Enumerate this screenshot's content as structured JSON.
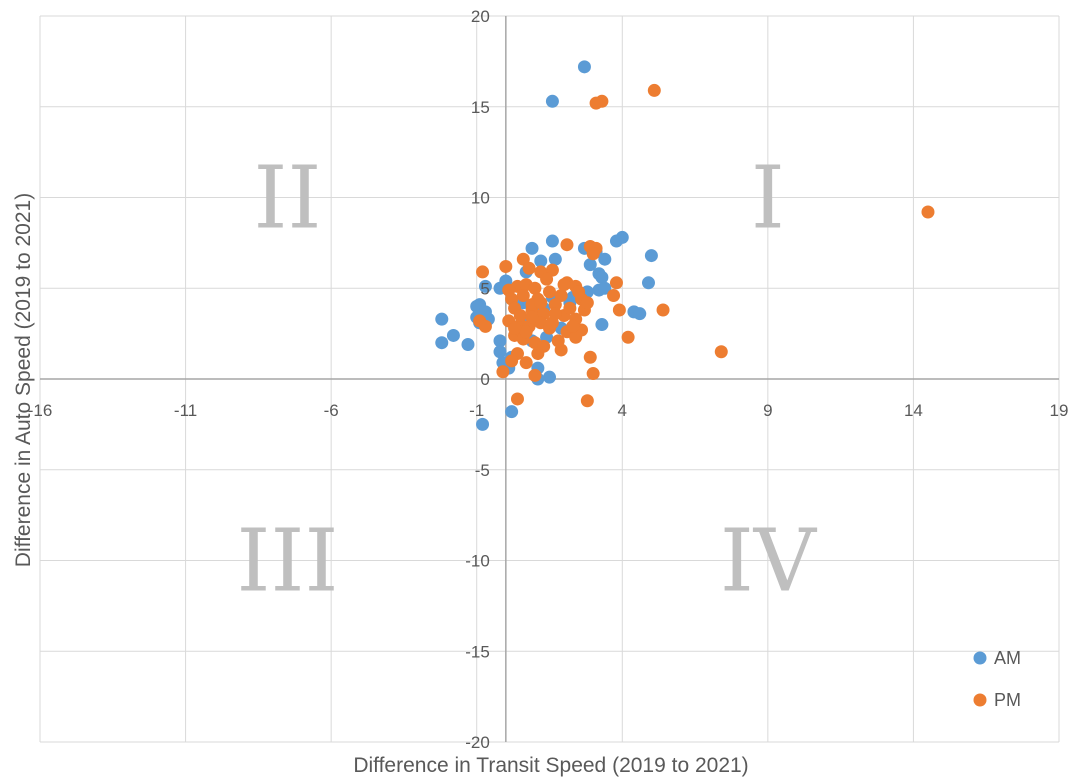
{
  "chart_data": {
    "type": "scatter",
    "title": "",
    "xlabel": "Difference in Transit Speed (2019 to 2021)",
    "ylabel": "Difference in Auto Speed (2019 to 2021)",
    "xlim": [
      -16,
      19
    ],
    "ylim": [
      -20,
      20
    ],
    "x_ticks": [
      -16,
      -11,
      -6,
      -1,
      4,
      9,
      14,
      19
    ],
    "y_ticks": [
      -20,
      -15,
      -10,
      -5,
      0,
      5,
      10,
      15,
      20
    ],
    "grid": true,
    "legend_position": "bottom-right",
    "quadrant_labels": [
      {
        "label": "I",
        "x": 9,
        "y": 10
      },
      {
        "label": "II",
        "x": -7.5,
        "y": 10
      },
      {
        "label": "III",
        "x": -7.5,
        "y": -10
      },
      {
        "label": "IV",
        "x": 9,
        "y": -10
      }
    ],
    "series": [
      {
        "name": "AM",
        "color": "#5b9bd5",
        "points": [
          [
            2.7,
            17.2
          ],
          [
            1.6,
            15.3
          ],
          [
            3.8,
            7.6
          ],
          [
            4.0,
            7.8
          ],
          [
            1.6,
            7.6
          ],
          [
            0.9,
            7.2
          ],
          [
            2.7,
            7.2
          ],
          [
            3.1,
            7.0
          ],
          [
            2.9,
            6.3
          ],
          [
            3.4,
            6.6
          ],
          [
            1.2,
            6.5
          ],
          [
            5.0,
            6.8
          ],
          [
            1.7,
            6.6
          ],
          [
            3.2,
            5.8
          ],
          [
            0.7,
            5.9
          ],
          [
            3.3,
            5.6
          ],
          [
            0.0,
            5.4
          ],
          [
            -0.2,
            5.0
          ],
          [
            -0.7,
            5.1
          ],
          [
            4.9,
            5.3
          ],
          [
            3.2,
            4.9
          ],
          [
            3.4,
            5.0
          ],
          [
            2.8,
            4.8
          ],
          [
            0.6,
            4.2
          ],
          [
            -0.9,
            4.1
          ],
          [
            -1.0,
            4.0
          ],
          [
            -0.7,
            3.7
          ],
          [
            -1.0,
            3.4
          ],
          [
            -0.6,
            3.3
          ],
          [
            -0.9,
            3.1
          ],
          [
            -2.2,
            3.3
          ],
          [
            -1.8,
            2.4
          ],
          [
            -2.2,
            2.0
          ],
          [
            -1.3,
            1.9
          ],
          [
            -0.2,
            2.1
          ],
          [
            -0.2,
            1.5
          ],
          [
            0.2,
            1.2
          ],
          [
            -0.1,
            0.9
          ],
          [
            0.1,
            0.6
          ],
          [
            1.1,
            0.6
          ],
          [
            1.5,
            0.1
          ],
          [
            1.1,
            0.0
          ],
          [
            0.2,
            -1.8
          ],
          [
            -0.8,
            -2.5
          ],
          [
            4.4,
            3.7
          ],
          [
            4.6,
            3.6
          ],
          [
            3.3,
            3.0
          ],
          [
            1.3,
            3.9
          ],
          [
            1.6,
            4.5
          ],
          [
            2.2,
            4.2
          ],
          [
            0.8,
            3.2
          ],
          [
            1.9,
            2.8
          ],
          [
            1.4,
            2.3
          ],
          [
            0.4,
            2.5
          ],
          [
            2.3,
            4.5
          ],
          [
            0.9,
            2.1
          ]
        ]
      },
      {
        "name": "PM",
        "color": "#ed7d31",
        "points": [
          [
            5.1,
            15.9
          ],
          [
            3.3,
            15.3
          ],
          [
            3.1,
            15.2
          ],
          [
            14.5,
            9.2
          ],
          [
            7.4,
            1.5
          ],
          [
            5.4,
            3.8
          ],
          [
            4.2,
            2.3
          ],
          [
            3.9,
            3.8
          ],
          [
            3.7,
            4.6
          ],
          [
            3.8,
            5.3
          ],
          [
            2.9,
            7.3
          ],
          [
            3.1,
            7.2
          ],
          [
            2.1,
            7.4
          ],
          [
            3.0,
            6.9
          ],
          [
            0.6,
            6.6
          ],
          [
            0.0,
            6.2
          ],
          [
            0.8,
            6.1
          ],
          [
            1.2,
            5.9
          ],
          [
            1.6,
            6.0
          ],
          [
            -0.8,
            5.9
          ],
          [
            2.1,
            5.3
          ],
          [
            2.4,
            5.1
          ],
          [
            0.4,
            5.1
          ],
          [
            0.7,
            5.2
          ],
          [
            1.0,
            5.0
          ],
          [
            1.5,
            4.8
          ],
          [
            1.9,
            4.6
          ],
          [
            2.6,
            4.4
          ],
          [
            0.2,
            4.4
          ],
          [
            0.6,
            4.6
          ],
          [
            1.1,
            4.4
          ],
          [
            1.7,
            4.1
          ],
          [
            0.3,
            3.9
          ],
          [
            0.9,
            3.8
          ],
          [
            1.3,
            3.6
          ],
          [
            2.0,
            3.5
          ],
          [
            2.7,
            3.8
          ],
          [
            2.4,
            3.3
          ],
          [
            0.1,
            3.2
          ],
          [
            0.5,
            3.0
          ],
          [
            0.8,
            2.9
          ],
          [
            1.2,
            3.1
          ],
          [
            1.5,
            2.8
          ],
          [
            2.1,
            2.6
          ],
          [
            2.4,
            2.3
          ],
          [
            -0.9,
            3.2
          ],
          [
            -0.7,
            2.9
          ],
          [
            0.3,
            2.4
          ],
          [
            0.6,
            2.2
          ],
          [
            1.0,
            2.0
          ],
          [
            1.3,
            1.8
          ],
          [
            1.9,
            1.6
          ],
          [
            0.4,
            1.4
          ],
          [
            0.2,
            1.0
          ],
          [
            0.7,
            0.9
          ],
          [
            -0.1,
            0.4
          ],
          [
            1.0,
            0.2
          ],
          [
            2.9,
            1.2
          ],
          [
            3.0,
            0.3
          ],
          [
            0.4,
            -1.1
          ],
          [
            2.8,
            -1.2
          ],
          [
            0.9,
            4.1
          ],
          [
            1.6,
            3.1
          ],
          [
            2.6,
            2.7
          ],
          [
            0.5,
            3.5
          ],
          [
            2.2,
            3.9
          ],
          [
            1.4,
            5.5
          ],
          [
            0.1,
            4.9
          ],
          [
            2.8,
            4.2
          ],
          [
            1.8,
            2.1
          ],
          [
            0.7,
            2.6
          ],
          [
            1.1,
            1.4
          ],
          [
            0.3,
            2.8
          ],
          [
            2.5,
            4.8
          ],
          [
            1.2,
            4.2
          ],
          [
            2.0,
            5.2
          ],
          [
            0.9,
            3.4
          ],
          [
            1.7,
            3.6
          ],
          [
            2.3,
            2.9
          ]
        ]
      }
    ]
  }
}
